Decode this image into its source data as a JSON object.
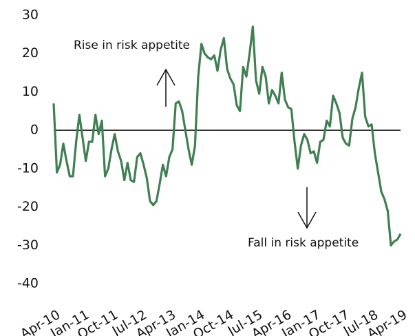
{
  "chart_data": {
    "type": "line",
    "categories": [
      "Apr-10",
      null,
      null,
      null,
      null,
      null,
      null,
      null,
      null,
      "Jan-11",
      null,
      null,
      null,
      null,
      null,
      null,
      null,
      null,
      "Oct-11",
      null,
      null,
      null,
      null,
      null,
      null,
      null,
      null,
      "Jul-12",
      null,
      null,
      null,
      null,
      null,
      null,
      null,
      null,
      "Apr-13",
      null,
      null,
      null,
      null,
      null,
      null,
      null,
      null,
      "Jan-14",
      null,
      null,
      null,
      null,
      null,
      null,
      null,
      null,
      "Oct-14",
      null,
      null,
      null,
      null,
      null,
      null,
      null,
      null,
      "Jul-15",
      null,
      null,
      null,
      null,
      null,
      null,
      null,
      null,
      "Apr-16",
      null,
      null,
      null,
      null,
      null,
      null,
      null,
      null,
      "Jan-17",
      null,
      null,
      null,
      null,
      null,
      null,
      null,
      null,
      "Oct-17",
      null,
      null,
      null,
      null,
      null,
      null,
      null,
      null,
      "Jul-18",
      null,
      null,
      null,
      null,
      null,
      null,
      null,
      null,
      "Apr-19"
    ],
    "values": [
      7,
      -11,
      -9,
      -3.5,
      -8,
      -12,
      -12,
      -3,
      4,
      -2,
      -8,
      -3,
      -3,
      4,
      -1,
      2.5,
      -12,
      -10,
      -5,
      -1,
      -5.5,
      -8,
      -13,
      -8.5,
      -13,
      -13.5,
      -7,
      -6,
      -9,
      -12.5,
      -18.5,
      -19.5,
      -18.5,
      -14,
      -9,
      -12,
      -7,
      -5,
      7,
      7.5,
      5,
      0,
      -5,
      -9,
      -4,
      14,
      22.5,
      20,
      19,
      18.5,
      19.5,
      15.5,
      21,
      24,
      16,
      13.5,
      12,
      6.5,
      5,
      16.5,
      14,
      20,
      27,
      13,
      9.5,
      16.5,
      14,
      7,
      10.5,
      9,
      7,
      15,
      8,
      6,
      5.5,
      -3,
      -10,
      -4,
      -1,
      -2.5,
      -6,
      -5.5,
      -8.5,
      -3,
      -2.5,
      2.5,
      1,
      9,
      7,
      4.5,
      -2,
      -3.5,
      -4,
      3,
      6,
      11,
      15,
      3.5,
      1,
      1.5,
      -6,
      -11,
      -16,
      -18,
      -21,
      -30,
      -29,
      -28.5,
      -27
    ],
    "color": "#3f7f52",
    "ylim": [
      -40,
      30
    ],
    "yticks": [
      30,
      20,
      10,
      0,
      -10,
      -20,
      -30,
      -40
    ],
    "grid": false,
    "annotations": [
      {
        "text": "Rise in risk appetite"
      },
      {
        "text": "Fall in risk appetite"
      }
    ]
  }
}
